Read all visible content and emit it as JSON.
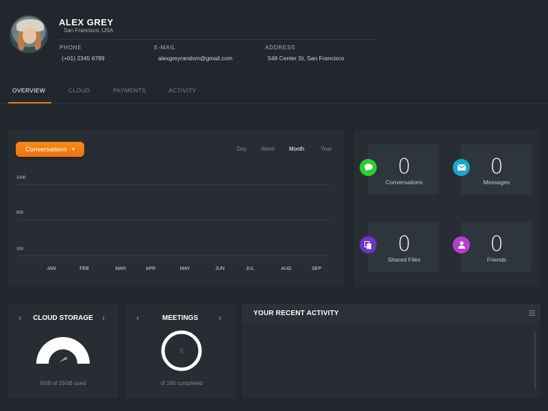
{
  "profile": {
    "name": "ALEX GREY",
    "location": "San Francisco, USA",
    "phone_label": "PHONE",
    "phone": "(+01) 2345 6789",
    "email_label": "E-MAIL",
    "email": "alexgreyrandom@gmail.com",
    "address_label": "ADDRESS",
    "address": "548 Center St, San Francisco"
  },
  "tabs": [
    {
      "label": "OVERVIEW",
      "active": true
    },
    {
      "label": "CLOUD",
      "active": false
    },
    {
      "label": "PAYMENTS",
      "active": false
    },
    {
      "label": "ACTIVITY",
      "active": false
    }
  ],
  "chart": {
    "dropdown_label": "Conversations",
    "periods": [
      {
        "label": "Day",
        "active": false
      },
      {
        "label": "Week",
        "active": false
      },
      {
        "label": "Month",
        "active": true
      },
      {
        "label": "Year",
        "active": false
      }
    ]
  },
  "chart_data": {
    "type": "line",
    "categories": [
      "JAN",
      "FEB",
      "MAR",
      "APR",
      "MAY",
      "JUN",
      "JUL",
      "AUG",
      "SEP"
    ],
    "y_ticks": [
      "1000",
      "500",
      "100"
    ],
    "series": [],
    "grid": true
  },
  "stats": [
    {
      "label": "Conversations",
      "value": "0",
      "icon": "chat-bubble-icon",
      "color": "#2bcf2b"
    },
    {
      "label": "Messages",
      "value": "0",
      "icon": "envelope-icon",
      "color": "#17a9c9"
    },
    {
      "label": "Shared Files",
      "value": "0",
      "icon": "files-icon",
      "color": "#6a35c9"
    },
    {
      "label": "Friends",
      "value": "0",
      "icon": "user-icon",
      "color": "#b33fd0"
    }
  ],
  "cloud": {
    "title": "CLOUD STORAGE",
    "caption": "0GB of 15GB used",
    "used_fraction": 0
  },
  "meetings": {
    "title": "MEETINGS",
    "value": "0",
    "caption": "of 160 completed"
  },
  "activity": {
    "title": "YOUR RECENT ACTIVITY"
  },
  "colors": {
    "accent": "#f07a18",
    "background": "#22272d",
    "panel": "#272d33"
  }
}
